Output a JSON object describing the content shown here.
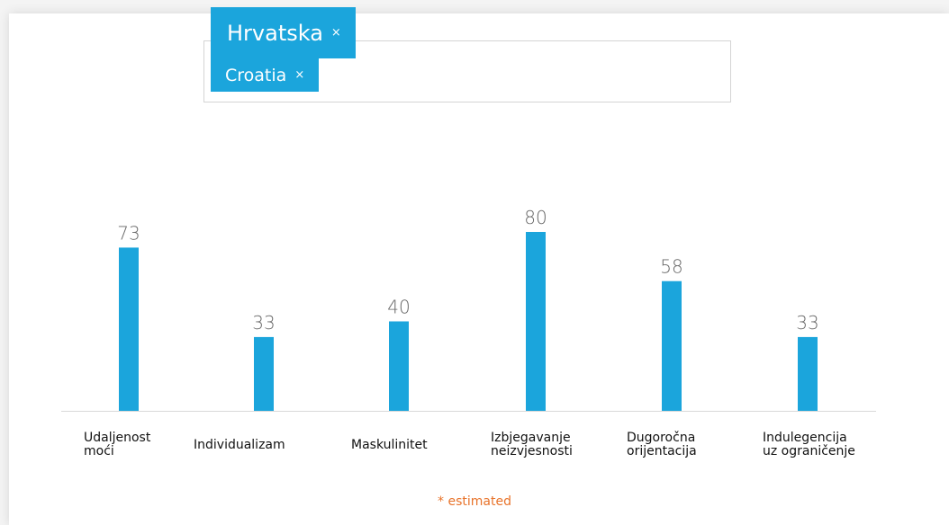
{
  "tags": [
    {
      "label": "Hrvatska"
    },
    {
      "label": "Croatia"
    }
  ],
  "remove_label": "×",
  "chart_data": {
    "type": "bar",
    "categories": [
      "Udaljenost moći",
      "Individualizam",
      "Maskulinitet",
      "Izbjegavanje neizvjesnosti",
      "Dugoročna orijentacija",
      "Indulegencija uz ograničenje"
    ],
    "values": [
      73,
      33,
      40,
      80,
      58,
      33
    ],
    "color": "#1ba5dc"
  },
  "note": "* estimated"
}
